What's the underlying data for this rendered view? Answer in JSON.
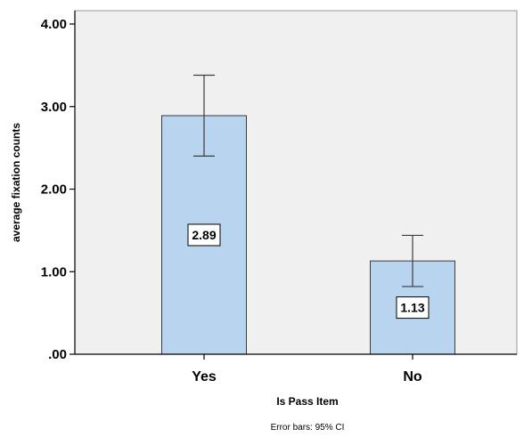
{
  "chart_data": {
    "type": "bar",
    "categories": [
      "Yes",
      "No"
    ],
    "values": [
      2.89,
      1.13
    ],
    "data_labels": [
      "2.89",
      "1.13"
    ],
    "error_bars": [
      {
        "lower": 2.4,
        "upper": 3.38
      },
      {
        "lower": 0.82,
        "upper": 1.44
      }
    ],
    "xlabel": "Is Pass Item",
    "ylabel": "average fixation counts",
    "ylim": [
      0,
      4
    ],
    "yticks": [
      0,
      1,
      2,
      3,
      4
    ],
    "ytick_labels": [
      ".00",
      "1.00",
      "2.00",
      "3.00",
      "4.00"
    ],
    "footnote": "Error bars: 95% CI",
    "grid": false,
    "legend": "none",
    "colors": {
      "plot_background": "#f0f0f0",
      "bar_fill": "#b8d4ee",
      "bar_stroke": "#3c3c3c",
      "axis": "#000000"
    }
  }
}
